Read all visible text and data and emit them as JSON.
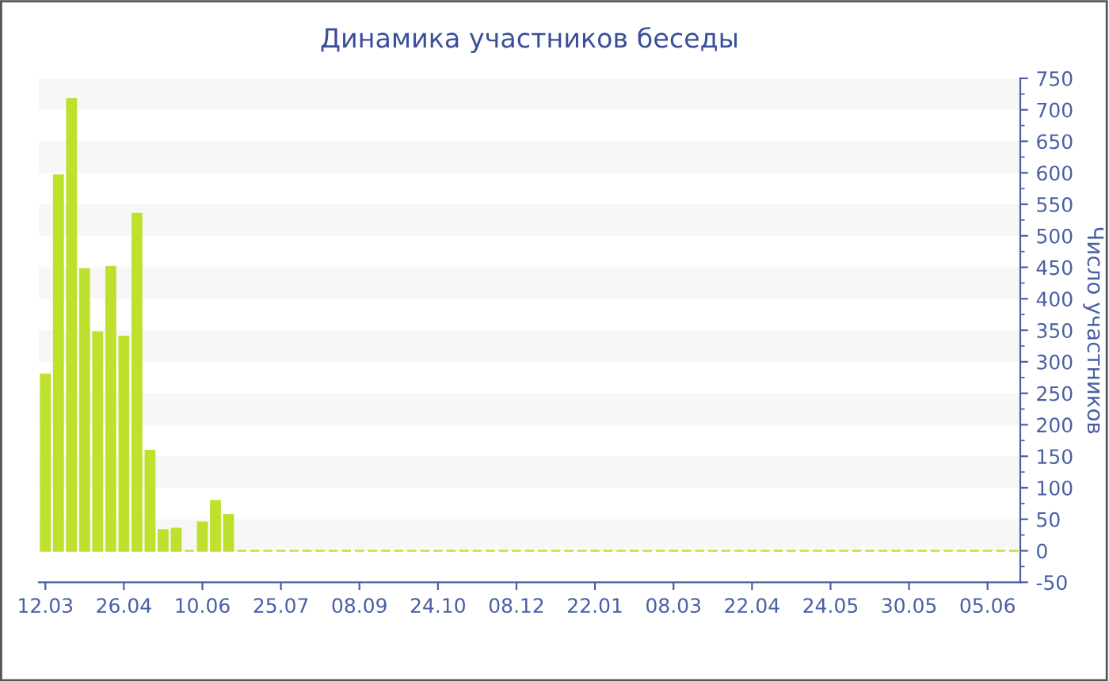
{
  "chart_data": {
    "type": "bar",
    "title": "Динамика участников беседы",
    "ylabel": "Число участников",
    "categories": [
      "12.03",
      null,
      null,
      null,
      null,
      null,
      "26.04",
      null,
      null,
      null,
      null,
      null,
      "10.06",
      null,
      null,
      null,
      null,
      null,
      "25.07",
      null,
      null,
      null,
      null,
      null,
      "08.09",
      null,
      null,
      null,
      null,
      null,
      "24.10",
      null,
      null,
      null,
      null,
      null,
      "08.12",
      null,
      null,
      null,
      null,
      null,
      "22.01",
      null,
      null,
      null,
      null,
      null,
      "08.03",
      null,
      null,
      null,
      null,
      null,
      "22.04",
      null,
      null,
      null,
      null,
      null,
      "24.05",
      null,
      null,
      null,
      null,
      null,
      "30.05",
      null,
      null,
      null,
      null,
      null,
      "05.06",
      null,
      null
    ],
    "values": [
      280,
      596,
      717,
      447,
      347,
      451,
      340,
      535,
      159,
      33,
      35,
      0,
      45,
      79,
      57,
      0,
      0,
      0,
      0,
      0,
      0,
      0,
      0,
      0,
      0,
      0,
      0,
      0,
      0,
      0,
      0,
      0,
      0,
      0,
      0,
      0,
      0,
      0,
      0,
      0,
      0,
      0,
      0,
      0,
      0,
      0,
      0,
      0,
      0,
      0,
      0,
      0,
      0,
      0,
      0,
      0,
      0,
      0,
      0,
      0,
      0,
      0,
      0,
      0,
      0,
      0,
      0,
      0,
      0,
      0,
      0,
      0,
      0,
      0,
      0
    ],
    "color": "#bde12c",
    "ylim": [
      -50,
      750
    ],
    "yticks": [
      -50,
      0,
      50,
      100,
      150,
      200,
      250,
      300,
      350,
      400,
      450,
      500,
      550,
      600,
      650,
      700,
      750
    ],
    "bands": [
      {
        "axis": "y",
        "from": 0,
        "to": 50,
        "color": "#f7f7f7"
      },
      {
        "axis": "y",
        "from": 100,
        "to": 150,
        "color": "#f7f7f7"
      },
      {
        "axis": "y",
        "from": 200,
        "to": 250,
        "color": "#f7f7f7"
      },
      {
        "axis": "y",
        "from": 300,
        "to": 350,
        "color": "#f7f7f7"
      },
      {
        "axis": "y",
        "from": 400,
        "to": 450,
        "color": "#f7f7f7"
      },
      {
        "axis": "y",
        "from": 500,
        "to": 550,
        "color": "#f7f7f7"
      },
      {
        "axis": "y",
        "from": 600,
        "to": 650,
        "color": "#f7f7f7"
      },
      {
        "axis": "y",
        "from": 700,
        "to": 750,
        "color": "#f7f7f7"
      }
    ]
  }
}
